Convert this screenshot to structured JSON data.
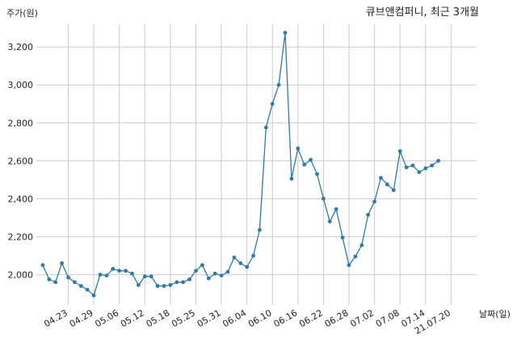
{
  "chart_data": {
    "type": "line",
    "title": "큐브앤컴퍼니, 최근 3개월",
    "ylabel": "주가(원)",
    "xlabel": "날짜(일)",
    "ylim": [
      1840,
      3320
    ],
    "yticks": [
      2000,
      2200,
      2400,
      2600,
      2800,
      3000,
      3200
    ],
    "ytick_labels": [
      "2,000",
      "2,200",
      "2,400",
      "2,600",
      "2,800",
      "3,000",
      "3,200"
    ],
    "x_tick_labels": [
      "04.23",
      "04.29",
      "05.06",
      "05.12",
      "05.18",
      "05.25",
      "05.31",
      "06.04",
      "06.10",
      "06.16",
      "06.22",
      "06.28",
      "07.02",
      "07.08",
      "07.14",
      "21.07.20"
    ],
    "x_tick_positions": [
      4,
      8,
      12,
      16,
      20,
      24,
      28,
      32,
      36,
      40,
      44,
      48,
      52,
      56,
      60,
      64
    ],
    "x_range": [
      -1,
      68
    ],
    "grid": true,
    "line_color": "#2f7aa8",
    "series": [
      {
        "values": [
          2050,
          1975,
          1960,
          2060,
          1985,
          1960,
          1940,
          1920,
          1890,
          2000,
          1995,
          2030,
          2020,
          2020,
          2005,
          1945,
          1990,
          1990,
          1940,
          1940,
          1945,
          1960,
          1960,
          1975,
          2020,
          2050,
          1980,
          2005,
          1995,
          2015,
          2090,
          2060,
          2040,
          2100,
          2235,
          2775,
          2900,
          3000,
          3275,
          2505,
          2665,
          2580,
          2605,
          2530,
          2400,
          2280,
          2345,
          2195,
          2050,
          2095,
          2155,
          2315,
          2385,
          2510,
          2475,
          2445,
          2650,
          2565,
          2575,
          2540,
          2560,
          2575,
          2600
        ]
      }
    ]
  }
}
